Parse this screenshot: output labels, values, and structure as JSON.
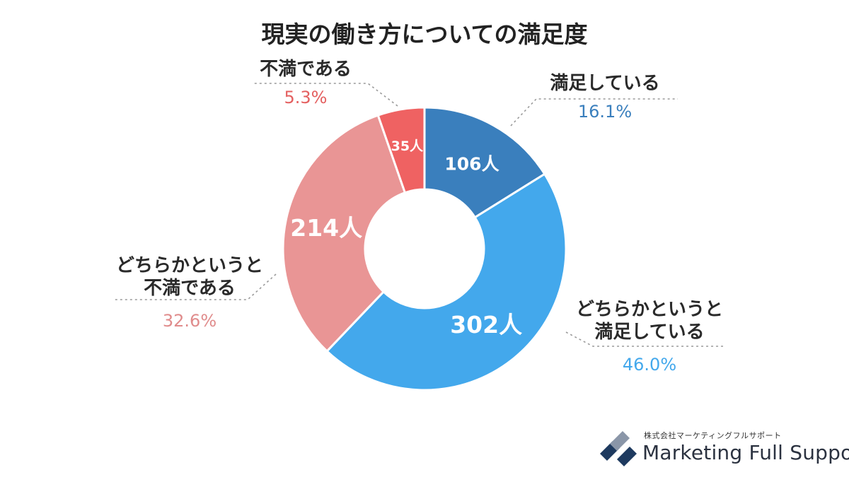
{
  "chart_data": {
    "type": "pie",
    "variant": "donut",
    "title": "現実の働き方についての満足度",
    "start_angle_deg": 0,
    "direction": "clockwise",
    "segments": [
      {
        "key": "satisfied",
        "label_lines": [
          "満足している"
        ],
        "count_text": "106人",
        "count": 106,
        "percent_text": "16.1%",
        "percent": 16.1,
        "color": "#3a7fbd",
        "label_color": "#3a7fbd"
      },
      {
        "key": "somewhat_satisfied",
        "label_lines": [
          "どちらかというと",
          "満足している"
        ],
        "count_text": "302人",
        "count": 302,
        "percent_text": "46.0%",
        "percent": 46.0,
        "color": "#43a8ec",
        "label_color": "#43a8ec"
      },
      {
        "key": "somewhat_dissatisfied",
        "label_lines": [
          "どちらかというと",
          "不満である"
        ],
        "count_text": "214人",
        "count": 214,
        "percent_text": "32.6%",
        "percent": 32.6,
        "color": "#e99595",
        "label_color": "#e08c8c"
      },
      {
        "key": "dissatisfied",
        "label_lines": [
          "不満である"
        ],
        "count_text": "35人",
        "count": 35,
        "percent_text": "5.3%",
        "percent": 5.3,
        "color": "#ef6262",
        "label_color": "#e46060"
      }
    ]
  },
  "logo": {
    "company": "株式会社マーケティングフルサポート",
    "brand": "Marketing Full Support",
    "colors": [
      "#1e3a5f",
      "#8a96a8"
    ],
    "icon": "mfs-logo-mark"
  }
}
